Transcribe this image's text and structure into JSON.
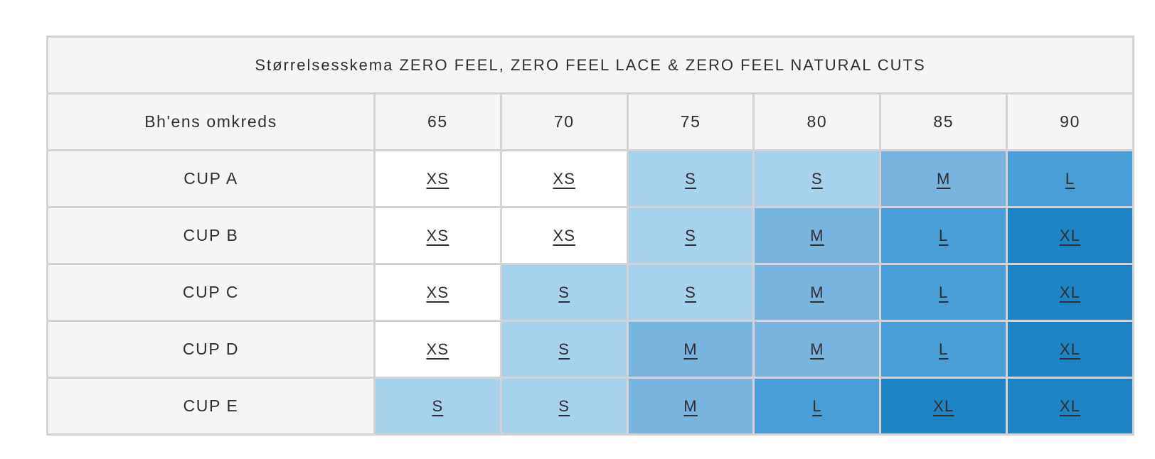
{
  "table": {
    "title": "Størrelsesskema ZERO FEEL, ZERO FEEL LACE & ZERO FEEL NATURAL CUTS",
    "header": {
      "label": "Bh'ens omkreds",
      "columns": [
        "65",
        "70",
        "75",
        "80",
        "85",
        "90"
      ]
    },
    "rows": [
      {
        "label": "CUP A",
        "cells": [
          {
            "size": "XS",
            "tone": "white"
          },
          {
            "size": "XS",
            "tone": "white"
          },
          {
            "size": "S",
            "tone": "s"
          },
          {
            "size": "S",
            "tone": "s"
          },
          {
            "size": "M",
            "tone": "m"
          },
          {
            "size": "L",
            "tone": "l"
          }
        ]
      },
      {
        "label": "CUP B",
        "cells": [
          {
            "size": "XS",
            "tone": "white"
          },
          {
            "size": "XS",
            "tone": "white"
          },
          {
            "size": "S",
            "tone": "s"
          },
          {
            "size": "M",
            "tone": "m"
          },
          {
            "size": "L",
            "tone": "l"
          },
          {
            "size": "XL",
            "tone": "xl"
          }
        ]
      },
      {
        "label": "CUP C",
        "cells": [
          {
            "size": "XS",
            "tone": "white"
          },
          {
            "size": "S",
            "tone": "s"
          },
          {
            "size": "S",
            "tone": "s"
          },
          {
            "size": "M",
            "tone": "m"
          },
          {
            "size": "L",
            "tone": "l"
          },
          {
            "size": "XL",
            "tone": "xl"
          }
        ]
      },
      {
        "label": "CUP D",
        "cells": [
          {
            "size": "XS",
            "tone": "white"
          },
          {
            "size": "S",
            "tone": "s"
          },
          {
            "size": "M",
            "tone": "m"
          },
          {
            "size": "M",
            "tone": "m"
          },
          {
            "size": "L",
            "tone": "l"
          },
          {
            "size": "XL",
            "tone": "xl"
          }
        ]
      },
      {
        "label": "CUP E",
        "cells": [
          {
            "size": "S",
            "tone": "s"
          },
          {
            "size": "S",
            "tone": "s"
          },
          {
            "size": "M",
            "tone": "m"
          },
          {
            "size": "L",
            "tone": "l"
          },
          {
            "size": "XL",
            "tone": "xl"
          },
          {
            "size": "XL",
            "tone": "xl"
          }
        ]
      }
    ],
    "colors": {
      "size_s": "#a7d2ec",
      "size_m": "#77b5de",
      "size_l": "#4a9ed8",
      "size_xl": "#1e83c4",
      "size_xs_bg": "#ffffff",
      "header_bg": "#f6f5f5",
      "gridline": "#d6d2d3",
      "text": "#2f2d2e"
    }
  }
}
